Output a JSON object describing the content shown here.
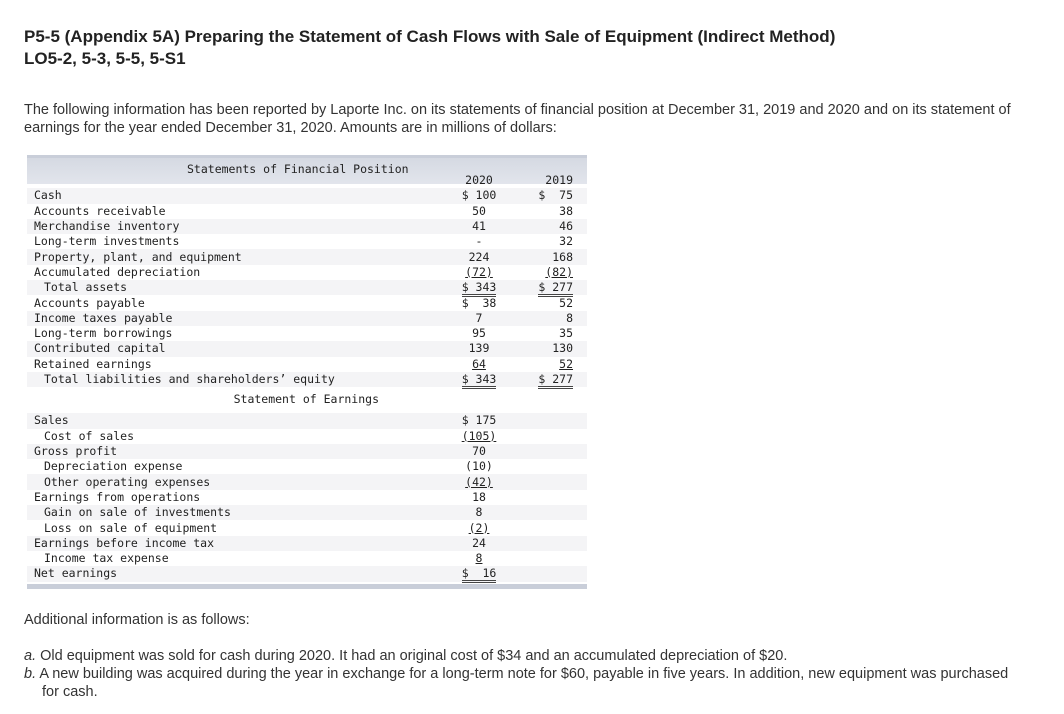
{
  "title_line1": "P5-5 (Appendix 5A) Preparing the Statement of Cash Flows with Sale of Equipment (Indirect Method)",
  "title_line2": "LO5-2, 5-3, 5-5, 5-S1",
  "intro": "The following information has been reported by Laporte Inc. on its statements of financial position at December 31, 2019 and 2020 and on its statement of earnings for the year ended December 31, 2020. Amounts are in millions of dollars:",
  "sfp_title": "Statements of Financial Position",
  "col_2020": "2020",
  "col_2019": "2019",
  "sfp_rows": [
    {
      "label": "Cash",
      "v2020": "$ 100",
      "v2019": "$  75"
    },
    {
      "label": "Accounts receivable",
      "v2020": "50",
      "v2019": "38"
    },
    {
      "label": "Merchandise inventory",
      "v2020": "41",
      "v2019": "46"
    },
    {
      "label": "Long-term investments",
      "v2020": "-",
      "v2019": "32"
    },
    {
      "label": "Property, plant, and equipment",
      "v2020": "224",
      "v2019": "168"
    },
    {
      "label": "Accumulated depreciation",
      "v2020": "(72)",
      "v2019": "(82)"
    },
    {
      "label": "Total assets",
      "v2020": "$ 343",
      "v2019": "$ 277"
    },
    {
      "label": "Accounts payable",
      "v2020": "$  38",
      "v2019": "52"
    },
    {
      "label": "Income taxes payable",
      "v2020": "7",
      "v2019": "8"
    },
    {
      "label": "Long-term borrowings",
      "v2020": "95",
      "v2019": "35"
    },
    {
      "label": "Contributed capital",
      "v2020": "139",
      "v2019": "130"
    },
    {
      "label": "Retained earnings",
      "v2020": "64",
      "v2019": "52"
    },
    {
      "label": "Total liabilities and shareholders’ equity",
      "v2020": "$ 343",
      "v2019": "$ 277"
    }
  ],
  "soe_title": "Statement of Earnings",
  "soe_rows": [
    {
      "label": "Sales",
      "v2020": "$ 175"
    },
    {
      "label": "Cost of sales",
      "v2020": "(105)"
    },
    {
      "label": "Gross profit",
      "v2020": "70"
    },
    {
      "label": "Depreciation expense",
      "v2020": "(10)"
    },
    {
      "label": "Other operating expenses",
      "v2020": "(42)"
    },
    {
      "label": "Earnings from operations",
      "v2020": "18"
    },
    {
      "label": "Gain on sale of investments",
      "v2020": "8"
    },
    {
      "label": "Loss on sale of equipment",
      "v2020": "(2)"
    },
    {
      "label": "Earnings before income tax",
      "v2020": "24"
    },
    {
      "label": "Income tax expense",
      "v2020": "8"
    },
    {
      "label": "Net earnings",
      "v2020": "$  16"
    }
  ],
  "additional_heading": "Additional information is as follows:",
  "notes": [
    {
      "marker": "a.",
      "text": "Old equipment was sold for cash during 2020. It had an original cost of $34 and an accumulated depreciation of $20."
    },
    {
      "marker": "b.",
      "text": "A new building was acquired during the year in exchange for a long-term note for $60, payable in five years. In addition, new equipment was purchased for cash."
    }
  ]
}
